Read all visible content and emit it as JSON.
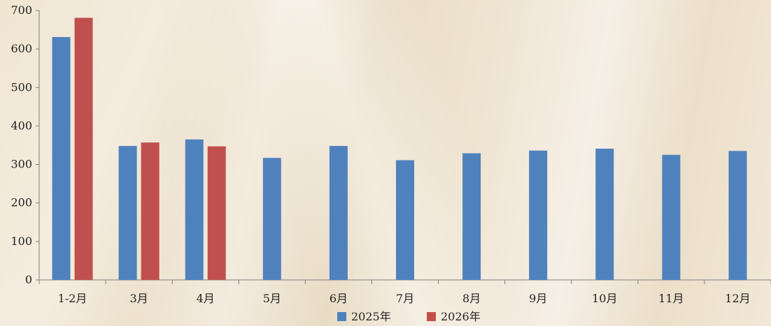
{
  "chart_data": {
    "type": "bar",
    "title": "",
    "xlabel": "",
    "ylabel": "",
    "categories": [
      "1-2月",
      "3月",
      "4月",
      "5月",
      "6月",
      "7月",
      "8月",
      "9月",
      "10月",
      "11月",
      "12月"
    ],
    "series": [
      {
        "name": "2025年",
        "color": "#4f81bd",
        "values": [
          631,
          348,
          365,
          317,
          348,
          311,
          329,
          336,
          341,
          325,
          335
        ]
      },
      {
        "name": "2026年",
        "color": "#c0504d",
        "values": [
          681,
          357,
          347,
          null,
          null,
          null,
          null,
          null,
          null,
          null,
          null
        ]
      }
    ],
    "ylim": [
      0,
      700
    ],
    "yticks": [
      0,
      100,
      200,
      300,
      400,
      500,
      600,
      700
    ],
    "grid": false,
    "legend_position": "bottom-center"
  }
}
